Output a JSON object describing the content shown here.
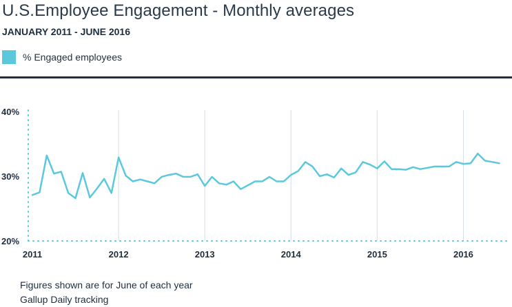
{
  "header": {
    "title": "U.S.Employee Engagement - Monthly averages",
    "subtitle": "JANUARY 2011 - JUNE 2016"
  },
  "legend": {
    "label": "% Engaged employees",
    "color": "#5bc8dc"
  },
  "notes": [
    "Figures shown are for June of each year",
    "Gallup Daily tracking"
  ],
  "colors": {
    "line": "#5bc8dc",
    "text": "#1f2d3d",
    "grid": "#d5dde3",
    "dots": "#5bc8dc"
  },
  "chart_data": {
    "type": "line",
    "title": "U.S.Employee Engagement - Monthly averages",
    "subtitle": "JANUARY 2011 - JUNE 2016",
    "xlabel": "",
    "ylabel": "",
    "ylim": [
      20,
      40
    ],
    "yticks": [
      20,
      30,
      40
    ],
    "ytick_labels": [
      "20%",
      "30%",
      "40%"
    ],
    "xticks": [
      2011,
      2012,
      2013,
      2014,
      2015,
      2016
    ],
    "xtick_labels": [
      "2011",
      "2012",
      "2013",
      "2014",
      "2015",
      "2016"
    ],
    "xlim": [
      2011.0,
      2016.5
    ],
    "grid": "vertical lines at year starts",
    "legend_position": "top-left",
    "series": [
      {
        "name": "% Engaged employees",
        "x": [
          "2011-01",
          "2011-02",
          "2011-03",
          "2011-04",
          "2011-05",
          "2011-06",
          "2011-07",
          "2011-08",
          "2011-09",
          "2011-10",
          "2011-11",
          "2011-12",
          "2012-01",
          "2012-02",
          "2012-03",
          "2012-04",
          "2012-05",
          "2012-06",
          "2012-07",
          "2012-08",
          "2012-09",
          "2012-10",
          "2012-11",
          "2012-12",
          "2013-01",
          "2013-02",
          "2013-03",
          "2013-04",
          "2013-05",
          "2013-06",
          "2013-07",
          "2013-08",
          "2013-09",
          "2013-10",
          "2013-11",
          "2013-12",
          "2014-01",
          "2014-02",
          "2014-03",
          "2014-04",
          "2014-05",
          "2014-06",
          "2014-07",
          "2014-08",
          "2014-09",
          "2014-10",
          "2014-11",
          "2014-12",
          "2015-01",
          "2015-02",
          "2015-03",
          "2015-04",
          "2015-05",
          "2015-06",
          "2015-07",
          "2015-08",
          "2015-09",
          "2015-10",
          "2015-11",
          "2015-12",
          "2016-01",
          "2016-02",
          "2016-03",
          "2016-04",
          "2016-05",
          "2016-06"
        ],
        "values": [
          27.1,
          27.5,
          33.2,
          30.4,
          30.7,
          27.4,
          26.6,
          30.5,
          26.7,
          28.1,
          29.6,
          27.4,
          32.9,
          30.1,
          29.2,
          29.5,
          29.2,
          28.9,
          29.9,
          30.2,
          30.4,
          29.9,
          29.9,
          30.3,
          28.5,
          29.9,
          28.9,
          28.7,
          29.2,
          28.0,
          28.6,
          29.2,
          29.2,
          29.9,
          29.2,
          29.2,
          30.2,
          30.8,
          32.2,
          31.5,
          30.0,
          30.3,
          29.8,
          31.2,
          30.2,
          30.6,
          32.2,
          31.8,
          31.2,
          32.3,
          31.1,
          31.1,
          31.0,
          31.4,
          31.1,
          31.3,
          31.5,
          31.5,
          31.5,
          32.2,
          31.9,
          32.0,
          33.5,
          32.4,
          32.2,
          32.0
        ]
      }
    ]
  }
}
